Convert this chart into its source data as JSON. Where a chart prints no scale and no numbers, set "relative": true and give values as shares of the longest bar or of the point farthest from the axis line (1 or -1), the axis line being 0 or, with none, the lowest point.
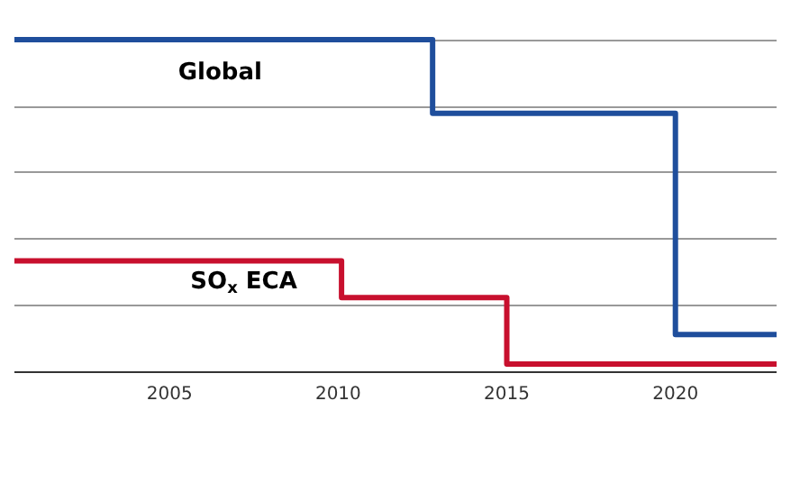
{
  "chart_data": {
    "type": "step",
    "relative": true,
    "xlim": [
      2000.4,
      2023
    ],
    "xticks": [
      2005,
      2010,
      2015,
      2020
    ],
    "grid": "y",
    "legend": false,
    "series": [
      {
        "name": "Global",
        "color": "#1f4e9c",
        "x": [
          2000.4,
          2012.8,
          2020,
          2023
        ],
        "values": [
          1,
          0.778,
          0.111,
          0.111
        ]
      },
      {
        "name": "SO$_{x}$ ECA",
        "color": "#c8102e",
        "x": [
          2000.4,
          2010.1,
          2015,
          2023
        ],
        "values": [
          0.333,
          0.222,
          0.022,
          0.022
        ]
      }
    ]
  }
}
